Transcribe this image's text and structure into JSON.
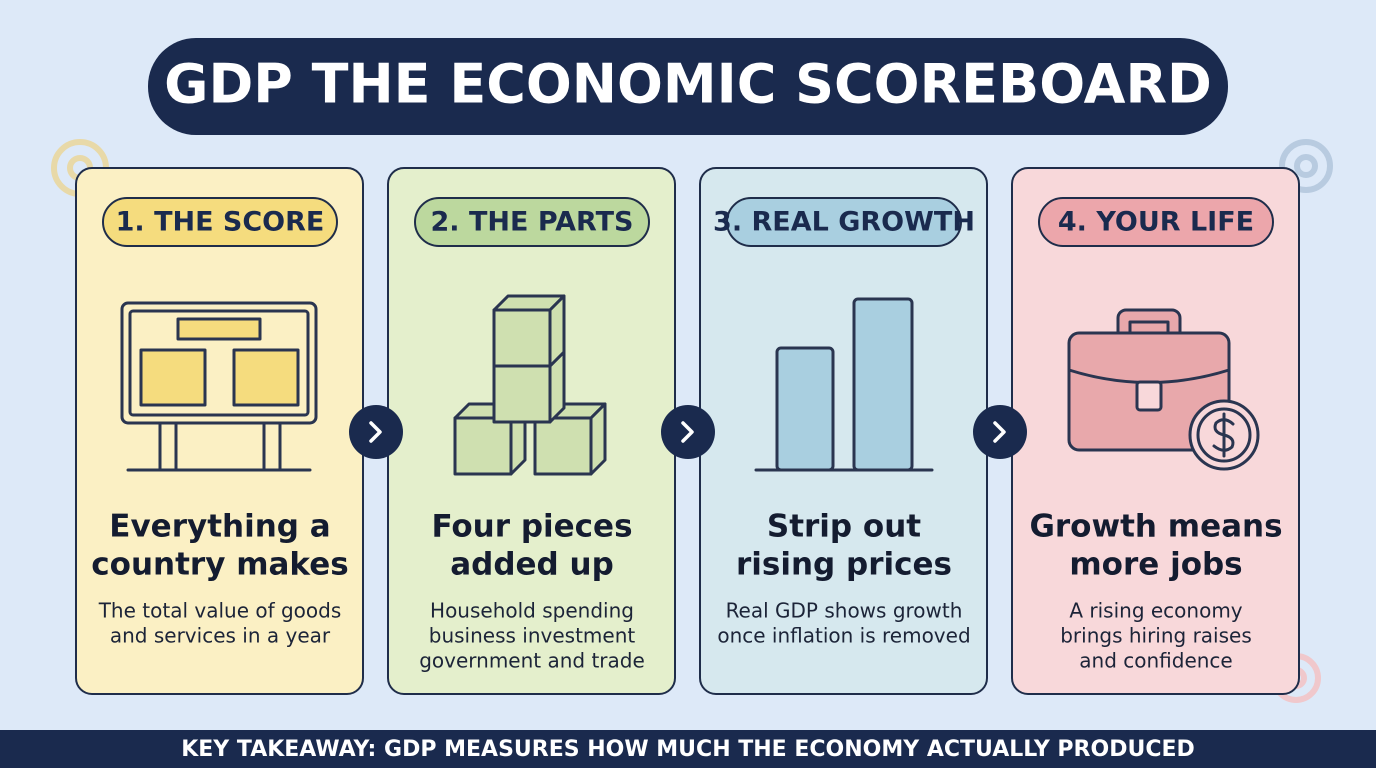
{
  "header": {
    "title": "GDP THE ECONOMIC SCOREBOARD"
  },
  "cards": [
    {
      "label": "1. THE SCORE",
      "heading": [
        "Everything a",
        "country makes"
      ],
      "body": [
        "The total value of goods",
        "and services in a year"
      ]
    },
    {
      "label": "2. THE PARTS",
      "heading": [
        "Four pieces",
        "added up"
      ],
      "body": [
        "Household spending",
        "business investment",
        "government and trade"
      ]
    },
    {
      "label": "3. REAL GROWTH",
      "heading": [
        "Strip out",
        "rising prices"
      ],
      "body": [
        "Real GDP shows growth",
        "once inflation is removed"
      ]
    },
    {
      "label": "4. YOUR LIFE",
      "heading": [
        "Growth means",
        "more jobs"
      ],
      "body": [
        "A rising economy",
        "brings hiring raises",
        "and confidence"
      ]
    }
  ],
  "footer": {
    "text": "KEY TAKEAWAY: GDP MEASURES HOW MUCH THE ECONOMY ACTUALLY PRODUCED"
  }
}
